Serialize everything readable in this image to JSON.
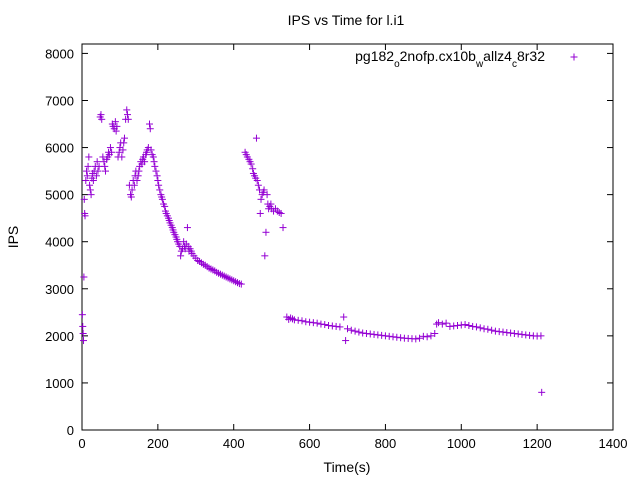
{
  "chart_data": {
    "type": "scatter",
    "title": "IPS vs Time for l.i1",
    "xlabel": "Time(s)",
    "ylabel": "IPS",
    "xlim": [
      0,
      1400
    ],
    "ylim": [
      0,
      8200
    ],
    "xticks": [
      0,
      200,
      400,
      600,
      800,
      1000,
      1200,
      1400
    ],
    "yticks": [
      0,
      1000,
      2000,
      3000,
      4000,
      5000,
      6000,
      7000,
      8000
    ],
    "grid": false,
    "legend_position": "top-right",
    "marker_color": "#9400d3",
    "series": [
      {
        "name": "pg182",
        "name_sub1": "o",
        "name_mid": "2nofp.cx10b",
        "name_sub2": "w",
        "name_mid2": "allz4",
        "name_sub3": "c",
        "name_end": "8r32",
        "points": [
          [
            1,
            2450
          ],
          [
            2,
            2200
          ],
          [
            3,
            2050
          ],
          [
            4,
            1900
          ],
          [
            5,
            3250
          ],
          [
            6,
            4900
          ],
          [
            7,
            4600
          ],
          [
            8,
            4550
          ],
          [
            10,
            5300
          ],
          [
            12,
            5500
          ],
          [
            14,
            5400
          ],
          [
            16,
            5600
          ],
          [
            18,
            5800
          ],
          [
            20,
            5200
          ],
          [
            22,
            5100
          ],
          [
            24,
            5000
          ],
          [
            26,
            5350
          ],
          [
            28,
            5450
          ],
          [
            30,
            5300
          ],
          [
            32,
            5500
          ],
          [
            35,
            5600
          ],
          [
            38,
            5400
          ],
          [
            40,
            5700
          ],
          [
            42,
            5500
          ],
          [
            45,
            5600
          ],
          [
            48,
            6650
          ],
          [
            50,
            6700
          ],
          [
            52,
            6600
          ],
          [
            55,
            5800
          ],
          [
            58,
            5700
          ],
          [
            60,
            5600
          ],
          [
            62,
            5500
          ],
          [
            65,
            5750
          ],
          [
            68,
            5800
          ],
          [
            70,
            5900
          ],
          [
            72,
            5850
          ],
          [
            75,
            6000
          ],
          [
            78,
            5900
          ],
          [
            80,
            6500
          ],
          [
            82,
            6450
          ],
          [
            85,
            6400
          ],
          [
            88,
            6550
          ],
          [
            90,
            6350
          ],
          [
            92,
            6450
          ],
          [
            95,
            5800
          ],
          [
            98,
            5900
          ],
          [
            100,
            6000
          ],
          [
            102,
            6100
          ],
          [
            105,
            5800
          ],
          [
            108,
            5950
          ],
          [
            110,
            6100
          ],
          [
            112,
            6200
          ],
          [
            115,
            6600
          ],
          [
            118,
            6800
          ],
          [
            120,
            6700
          ],
          [
            122,
            6600
          ],
          [
            125,
            5200
          ],
          [
            128,
            5000
          ],
          [
            130,
            4950
          ],
          [
            132,
            5100
          ],
          [
            135,
            5300
          ],
          [
            138,
            5200
          ],
          [
            140,
            5400
          ],
          [
            142,
            5500
          ],
          [
            145,
            5300
          ],
          [
            148,
            5400
          ],
          [
            150,
            5500
          ],
          [
            152,
            5600
          ],
          [
            155,
            5700
          ],
          [
            158,
            5650
          ],
          [
            160,
            5750
          ],
          [
            162,
            5800
          ],
          [
            165,
            5700
          ],
          [
            168,
            5850
          ],
          [
            170,
            5900
          ],
          [
            172,
            5950
          ],
          [
            175,
            6000
          ],
          [
            178,
            6500
          ],
          [
            180,
            6400
          ],
          [
            182,
            5950
          ],
          [
            185,
            5850
          ],
          [
            188,
            5800
          ],
          [
            190,
            5700
          ],
          [
            192,
            5600
          ],
          [
            195,
            5500
          ],
          [
            198,
            5400
          ],
          [
            200,
            5300
          ],
          [
            202,
            5200
          ],
          [
            205,
            5100
          ],
          [
            208,
            5000
          ],
          [
            210,
            4950
          ],
          [
            212,
            4900
          ],
          [
            215,
            4800
          ],
          [
            218,
            4750
          ],
          [
            220,
            4650
          ],
          [
            222,
            4600
          ],
          [
            225,
            4550
          ],
          [
            228,
            4500
          ],
          [
            230,
            4450
          ],
          [
            232,
            4400
          ],
          [
            235,
            4350
          ],
          [
            238,
            4300
          ],
          [
            240,
            4250
          ],
          [
            242,
            4200
          ],
          [
            245,
            4150
          ],
          [
            248,
            4100
          ],
          [
            250,
            4050
          ],
          [
            252,
            4000
          ],
          [
            255,
            3950
          ],
          [
            258,
            3900
          ],
          [
            260,
            3700
          ],
          [
            262,
            3800
          ],
          [
            265,
            3850
          ],
          [
            268,
            4000
          ],
          [
            270,
            3900
          ],
          [
            272,
            3850
          ],
          [
            275,
            3950
          ],
          [
            278,
            4300
          ],
          [
            280,
            3900
          ],
          [
            282,
            3800
          ],
          [
            285,
            3850
          ],
          [
            288,
            3800
          ],
          [
            290,
            3750
          ],
          [
            295,
            3700
          ],
          [
            300,
            3650
          ],
          [
            305,
            3600
          ],
          [
            310,
            3580
          ],
          [
            315,
            3550
          ],
          [
            320,
            3520
          ],
          [
            325,
            3500
          ],
          [
            330,
            3470
          ],
          [
            335,
            3440
          ],
          [
            340,
            3420
          ],
          [
            345,
            3400
          ],
          [
            350,
            3380
          ],
          [
            355,
            3350
          ],
          [
            360,
            3330
          ],
          [
            365,
            3310
          ],
          [
            370,
            3290
          ],
          [
            375,
            3270
          ],
          [
            380,
            3250
          ],
          [
            385,
            3230
          ],
          [
            390,
            3210
          ],
          [
            395,
            3190
          ],
          [
            400,
            3170
          ],
          [
            405,
            3150
          ],
          [
            410,
            3130
          ],
          [
            415,
            3110
          ],
          [
            420,
            3100
          ],
          [
            430,
            5900
          ],
          [
            433,
            5850
          ],
          [
            436,
            5800
          ],
          [
            440,
            5750
          ],
          [
            443,
            5700
          ],
          [
            446,
            5650
          ],
          [
            450,
            5550
          ],
          [
            452,
            5450
          ],
          [
            455,
            5400
          ],
          [
            458,
            5350
          ],
          [
            460,
            6200
          ],
          [
            462,
            5300
          ],
          [
            465,
            5200
          ],
          [
            468,
            5100
          ],
          [
            470,
            4600
          ],
          [
            472,
            4900
          ],
          [
            475,
            5000
          ],
          [
            478,
            5050
          ],
          [
            480,
            5100
          ],
          [
            482,
            3700
          ],
          [
            485,
            4200
          ],
          [
            488,
            5000
          ],
          [
            490,
            4800
          ],
          [
            492,
            4700
          ],
          [
            495,
            4750
          ],
          [
            498,
            4800
          ],
          [
            500,
            4700
          ],
          [
            505,
            4650
          ],
          [
            510,
            4700
          ],
          [
            515,
            4650
          ],
          [
            520,
            4620
          ],
          [
            525,
            4600
          ],
          [
            530,
            4300
          ],
          [
            540,
            2400
          ],
          [
            545,
            2350
          ],
          [
            550,
            2380
          ],
          [
            555,
            2360
          ],
          [
            560,
            2340
          ],
          [
            570,
            2330
          ],
          [
            580,
            2320
          ],
          [
            590,
            2300
          ],
          [
            600,
            2290
          ],
          [
            610,
            2280
          ],
          [
            620,
            2270
          ],
          [
            630,
            2250
          ],
          [
            640,
            2240
          ],
          [
            650,
            2220
          ],
          [
            660,
            2210
          ],
          [
            670,
            2200
          ],
          [
            680,
            2190
          ],
          [
            690,
            2400
          ],
          [
            695,
            1900
          ],
          [
            700,
            2150
          ],
          [
            710,
            2120
          ],
          [
            720,
            2100
          ],
          [
            730,
            2080
          ],
          [
            740,
            2060
          ],
          [
            750,
            2050
          ],
          [
            760,
            2040
          ],
          [
            770,
            2030
          ],
          [
            780,
            2020
          ],
          [
            790,
            2010
          ],
          [
            800,
            2000
          ],
          [
            810,
            1990
          ],
          [
            820,
            1980
          ],
          [
            830,
            1970
          ],
          [
            840,
            1960
          ],
          [
            850,
            1950
          ],
          [
            860,
            1945
          ],
          [
            870,
            1940
          ],
          [
            880,
            1935
          ],
          [
            890,
            1950
          ],
          [
            900,
            1990
          ],
          [
            910,
            1980
          ],
          [
            920,
            2000
          ],
          [
            930,
            2050
          ],
          [
            935,
            2250
          ],
          [
            940,
            2280
          ],
          [
            950,
            2250
          ],
          [
            960,
            2270
          ],
          [
            970,
            2200
          ],
          [
            980,
            2210
          ],
          [
            990,
            2220
          ],
          [
            1000,
            2230
          ],
          [
            1010,
            2240
          ],
          [
            1020,
            2220
          ],
          [
            1030,
            2200
          ],
          [
            1040,
            2190
          ],
          [
            1050,
            2170
          ],
          [
            1060,
            2150
          ],
          [
            1070,
            2140
          ],
          [
            1080,
            2120
          ],
          [
            1090,
            2100
          ],
          [
            1100,
            2090
          ],
          [
            1110,
            2080
          ],
          [
            1120,
            2070
          ],
          [
            1130,
            2060
          ],
          [
            1140,
            2050
          ],
          [
            1150,
            2040
          ],
          [
            1160,
            2030
          ],
          [
            1170,
            2020
          ],
          [
            1180,
            2010
          ],
          [
            1190,
            2000
          ],
          [
            1200,
            1995
          ],
          [
            1210,
            2000
          ],
          [
            1212,
            800
          ]
        ]
      }
    ]
  }
}
